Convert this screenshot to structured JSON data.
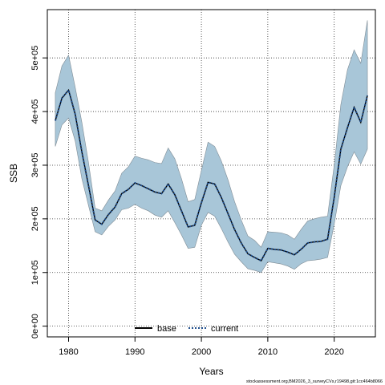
{
  "chart_data": {
    "type": "line",
    "title": "",
    "xlabel": "Years",
    "ylabel": "SSB",
    "xlim": [
      1976.8,
      2026.2
    ],
    "ylim": [
      -20000,
      590000
    ],
    "xticks": [
      1980,
      1990,
      2000,
      2010,
      2020
    ],
    "xtick_labels": [
      "1980",
      "1990",
      "2000",
      "2010",
      "2020"
    ],
    "yticks": [
      0,
      100000,
      200000,
      300000,
      400000,
      500000
    ],
    "ytick_labels": [
      "0e+00",
      "1e+05",
      "2e+05",
      "3e+05",
      "4e+05",
      "5e+05"
    ],
    "grid": true,
    "legend_position": "bottom-center",
    "x": [
      1978,
      1979,
      1980,
      1981,
      1982,
      1983,
      1984,
      1985,
      1986,
      1987,
      1988,
      1989,
      1990,
      1991,
      1992,
      1993,
      1994,
      1995,
      1996,
      1997,
      1998,
      1999,
      2000,
      2001,
      2002,
      2003,
      2004,
      2005,
      2006,
      2007,
      2008,
      2009,
      2010,
      2011,
      2012,
      2013,
      2014,
      2015,
      2016,
      2017,
      2018,
      2019,
      2020,
      2021,
      2022,
      2023,
      2024,
      2025
    ],
    "series": [
      {
        "name": "base",
        "color": "#000000",
        "style": "solid",
        "values": [
          383000,
          425000,
          440000,
          395000,
          325000,
          262000,
          198000,
          190000,
          208000,
          222000,
          247000,
          255000,
          267000,
          262000,
          256000,
          250000,
          247000,
          265000,
          245000,
          215000,
          185000,
          188000,
          230000,
          268000,
          265000,
          240000,
          210000,
          180000,
          155000,
          135000,
          128000,
          122000,
          145000,
          143000,
          142000,
          138000,
          133000,
          143000,
          155000,
          157000,
          158000,
          162000,
          240000,
          330000,
          370000,
          408000,
          380000,
          430000
        ]
      },
      {
        "name": "current",
        "color": "#1f4e8c",
        "style": "dotted",
        "values": [
          383000,
          425000,
          440000,
          395000,
          325000,
          262000,
          198000,
          190000,
          208000,
          222000,
          247000,
          255000,
          267000,
          262000,
          256000,
          250000,
          247000,
          265000,
          245000,
          215000,
          185000,
          188000,
          230000,
          268000,
          265000,
          240000,
          210000,
          180000,
          155000,
          135000,
          128000,
          122000,
          145000,
          143000,
          142000,
          138000,
          133000,
          143000,
          155000,
          157000,
          158000,
          162000,
          240000,
          330000,
          370000,
          408000,
          380000,
          430000
        ]
      }
    ],
    "confidence_band": {
      "color": "#a8c6d8",
      "lower": [
        335000,
        375000,
        388000,
        345000,
        275000,
        225000,
        176000,
        170000,
        186000,
        198000,
        217000,
        220000,
        227000,
        220000,
        215000,
        207000,
        203000,
        215000,
        193000,
        170000,
        145000,
        147000,
        188000,
        212000,
        205000,
        182000,
        157000,
        134000,
        120000,
        107000,
        104000,
        100000,
        120000,
        118000,
        116000,
        112000,
        106000,
        116000,
        122000,
        123000,
        125000,
        128000,
        190000,
        262000,
        297000,
        325000,
        302000,
        330000
      ],
      "upper": [
        435000,
        485000,
        505000,
        445000,
        380000,
        305000,
        220000,
        215000,
        235000,
        252000,
        285000,
        297000,
        317000,
        313000,
        310000,
        305000,
        303000,
        332000,
        312000,
        275000,
        232000,
        236000,
        290000,
        343000,
        335000,
        308000,
        273000,
        232000,
        198000,
        168000,
        160000,
        147000,
        176000,
        175000,
        174000,
        170000,
        162000,
        180000,
        196000,
        200000,
        203000,
        205000,
        300000,
        413000,
        478000,
        515000,
        490000,
        570000
      ]
    },
    "footer": "stockassessment.org,BM2026_3_surveyCVs,r19498,git:1cc464b8066"
  }
}
